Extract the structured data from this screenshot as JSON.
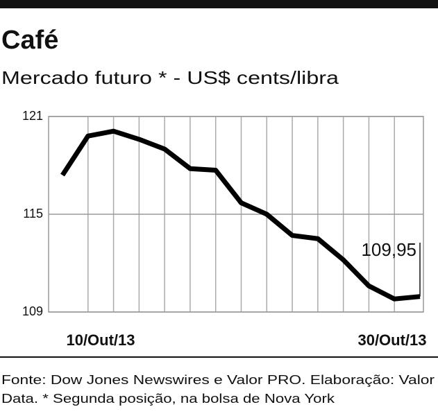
{
  "chart_data": {
    "type": "line",
    "title": "Café",
    "subtitle": "Mercado futuro * - US$ cents/libra",
    "categories": [
      "10/Out/13",
      null,
      null,
      null,
      null,
      null,
      null,
      null,
      null,
      null,
      null,
      null,
      null,
      null,
      "30/Out/13"
    ],
    "values": [
      117.4,
      119.8,
      120.1,
      119.6,
      119.0,
      117.8,
      117.7,
      115.7,
      115.0,
      113.7,
      113.5,
      112.2,
      110.6,
      109.8,
      109.95
    ],
    "value_labels": [
      null,
      null,
      null,
      null,
      null,
      null,
      null,
      null,
      null,
      null,
      null,
      null,
      null,
      null,
      "109,95"
    ],
    "color": "#000000",
    "ylim": [
      109,
      121
    ],
    "yticks": [
      109,
      115,
      121
    ],
    "grid": true,
    "source": "Fonte: Dow Jones Newswires e Valor PRO. Elaboração: Valor",
    "note": "Data. * Segunda posição, na bolsa de Nova York"
  }
}
